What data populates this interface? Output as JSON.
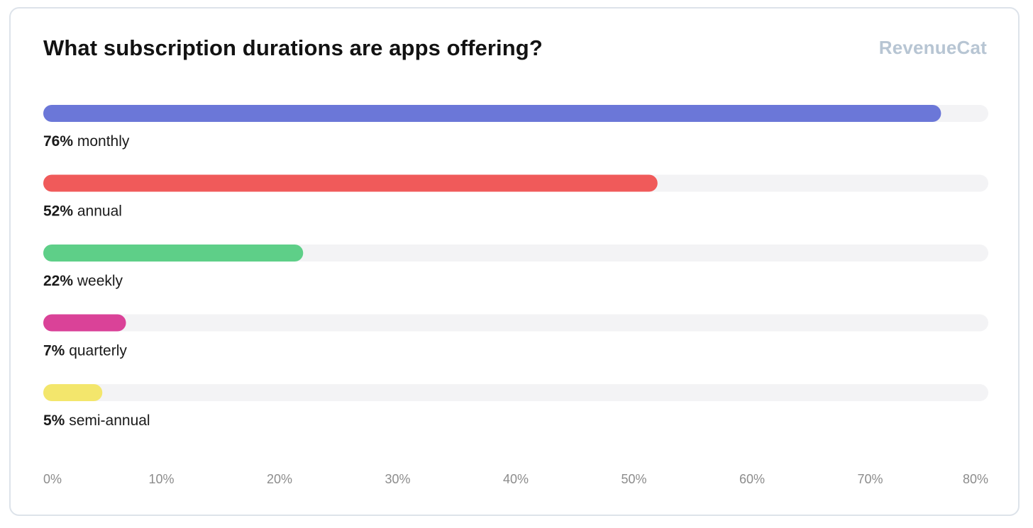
{
  "chart_data": {
    "type": "bar",
    "orientation": "horizontal",
    "title": "What subscription durations are apps offering?",
    "categories": [
      "monthly",
      "annual",
      "weekly",
      "quarterly",
      "semi-annual"
    ],
    "values": [
      76,
      52,
      22,
      7,
      5
    ],
    "value_labels": [
      "76%",
      "52%",
      "22%",
      "7%",
      "5%"
    ],
    "colors": [
      "#6b77d8",
      "#f05a5a",
      "#5ecf88",
      "#da4298",
      "#f3e66c"
    ],
    "track_color": "#f3f3f5",
    "xlim": [
      0,
      80
    ],
    "x_ticks": [
      0,
      10,
      20,
      30,
      40,
      50,
      60,
      70,
      80
    ],
    "x_tick_labels": [
      "0%",
      "10%",
      "20%",
      "30%",
      "40%",
      "50%",
      "60%",
      "70%",
      "80%"
    ],
    "grid": false,
    "legend": "none"
  },
  "brand": {
    "logo_text": "RevenueCat"
  }
}
